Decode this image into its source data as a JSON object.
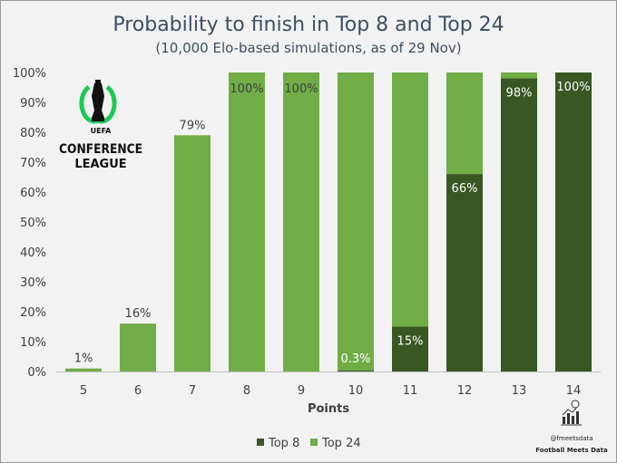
{
  "chart_data": {
    "type": "bar",
    "title": "Probability to finish in Top 8 and Top 24",
    "subtitle": "(10,000 Elo-based simulations, as of 29 Nov)",
    "xlabel": "Points",
    "ylabel": "",
    "categories": [
      "5",
      "6",
      "7",
      "8",
      "9",
      "10",
      "11",
      "12",
      "13",
      "14"
    ],
    "series": [
      {
        "name": "Top 8",
        "color": "#385723",
        "values": [
          0,
          0,
          0,
          0,
          0,
          0.3,
          15,
          66,
          98,
          100
        ]
      },
      {
        "name": "Top 24",
        "color": "#70ad47",
        "values": [
          1,
          16,
          79,
          100,
          100,
          100,
          100,
          100,
          100,
          100
        ]
      }
    ],
    "data_labels": [
      "1%",
      "16%",
      "79%",
      "100%",
      "100%",
      "0.3%",
      "15%",
      "66%",
      "98%",
      "100%"
    ],
    "yticks": [
      "0%",
      "10%",
      "20%",
      "30%",
      "40%",
      "50%",
      "60%",
      "70%",
      "80%",
      "90%",
      "100%"
    ],
    "ylim": [
      0,
      100
    ],
    "grid": false,
    "legend": "bottom"
  },
  "logo": {
    "line1": "UEFA",
    "line2": "CONFERENCE",
    "line3": "LEAGUE",
    "icon": "conference-league-trophy-icon"
  },
  "branding": {
    "handle": "@fmeetsdata",
    "name": "Football Meets Data",
    "icon": "bar-chart-ball-icon"
  }
}
